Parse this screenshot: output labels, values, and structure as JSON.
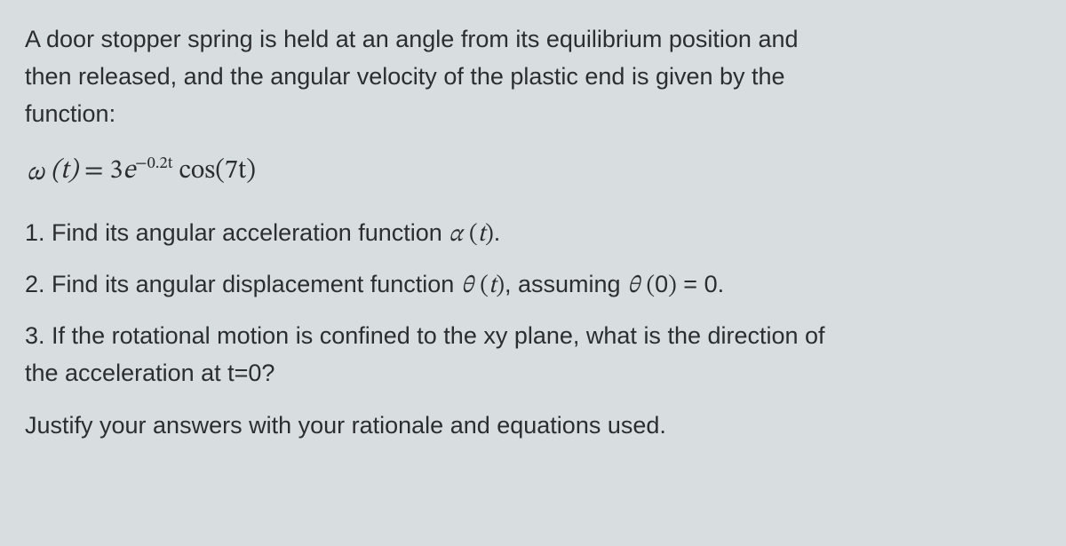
{
  "typography": {
    "body_font": "Segoe UI / Helvetica Neue",
    "math_font": "Cambria Math / STIX",
    "body_fontsize_pt": 20,
    "math_fontsize_pt": 22,
    "line_height": 1.55,
    "text_color": "#2b2e31",
    "background_color": "#d8dde0"
  },
  "intro": {
    "line1": "A door stopper spring is held at an angle from its equilibrium position and",
    "line2": "then released, and the angular velocity of the plastic end is given by the",
    "line3": "function:"
  },
  "formula": {
    "lhs_symbol": "ω",
    "lhs_arg": "t",
    "coeff": "3",
    "exp_base": "e",
    "exp_power": "−0.2t",
    "trig": "cos",
    "trig_arg": "7t",
    "rendered": "ω (t) = 3e^{−0.2t} cos(7t)"
  },
  "questions": {
    "q1": {
      "num": "1.",
      "text_a": "Find its angular acceleration function ",
      "sym": "α",
      "arg": "t",
      "text_b": "."
    },
    "q2": {
      "num": "2.",
      "text_a": "Find its angular displacement function ",
      "sym": "θ",
      "arg": "t",
      "text_b": ", assuming ",
      "sym2": "θ",
      "arg2": "0",
      "eq": " = 0."
    },
    "q3": {
      "num": "3.",
      "line1": "If the rotational motion is confined to the xy plane, what is the direction of",
      "line2": "the acceleration at t=0?"
    }
  },
  "justify": "Justify your answers with your rationale and equations used."
}
